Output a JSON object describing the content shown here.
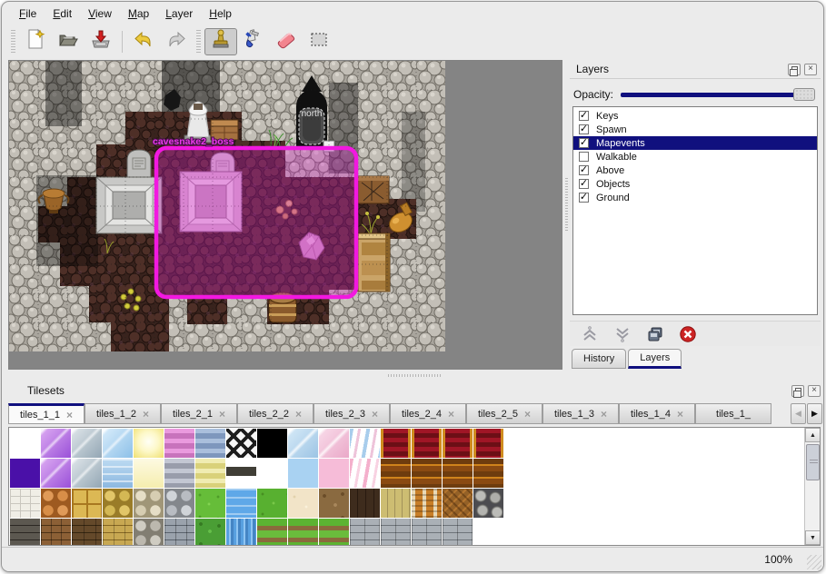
{
  "menu": {
    "items": [
      {
        "label": "File"
      },
      {
        "label": "Edit"
      },
      {
        "label": "View"
      },
      {
        "label": "Map"
      },
      {
        "label": "Layer"
      },
      {
        "label": "Help"
      }
    ]
  },
  "toolbar": {
    "buttons": [
      "new-file",
      "open-file",
      "save-file",
      "undo",
      "redo",
      "stamp-tool",
      "fill-tool",
      "eraser-tool",
      "rect-select-tool"
    ],
    "active_tool": "stamp-tool"
  },
  "map_view": {
    "door_label": "north",
    "selection_label": "cavesnake2_boss"
  },
  "layers_panel": {
    "title": "Layers",
    "opacity_label": "Opacity:",
    "layers": [
      {
        "name": "Keys",
        "checked": true,
        "selected": false
      },
      {
        "name": "Spawn",
        "checked": true,
        "selected": false
      },
      {
        "name": "Mapevents",
        "checked": true,
        "selected": true
      },
      {
        "name": "Walkable",
        "checked": false,
        "selected": false
      },
      {
        "name": "Above",
        "checked": true,
        "selected": false
      },
      {
        "name": "Objects",
        "checked": true,
        "selected": false
      },
      {
        "name": "Ground",
        "checked": true,
        "selected": false
      }
    ],
    "buttons": [
      "raise-layer",
      "lower-layer",
      "duplicate-layer",
      "delete-layer"
    ],
    "tabs": [
      {
        "label": "History",
        "active": false
      },
      {
        "label": "Layers",
        "active": true
      }
    ]
  },
  "tilesets_panel": {
    "title": "Tilesets",
    "tabs": [
      {
        "label": "tiles_1_1",
        "active": true,
        "truncated": false
      },
      {
        "label": "tiles_1_2",
        "active": false,
        "truncated": false
      },
      {
        "label": "tiles_2_1",
        "active": false,
        "truncated": false
      },
      {
        "label": "tiles_2_2",
        "active": false,
        "truncated": false
      },
      {
        "label": "tiles_2_3",
        "active": false,
        "truncated": false
      },
      {
        "label": "tiles_2_4",
        "active": false,
        "truncated": false
      },
      {
        "label": "tiles_2_5",
        "active": false,
        "truncated": false
      },
      {
        "label": "tiles_1_3",
        "active": false,
        "truncated": false
      },
      {
        "label": "tiles_1_4",
        "active": false,
        "truncated": false
      },
      {
        "label": "tiles_1_",
        "active": false,
        "truncated": true
      }
    ],
    "close_glyph": "×",
    "scroll_left_glyph": "◀",
    "scroll_right_glyph": "▶",
    "palette_rows": [
      [
        "empty",
        "crysP",
        "crysG",
        "crysB",
        "glow",
        "strP",
        "strB",
        "lattice",
        "black",
        "glassB",
        "glassP",
        "ribB",
        "carR",
        "carR",
        "carR",
        "carR"
      ],
      [
        "purple",
        "crysP",
        "crysG",
        "waterA",
        "paleY",
        "strG",
        "strY",
        "sign",
        "empty",
        "blue",
        "pink",
        "ribP",
        "carO",
        "carO",
        "carO",
        "carO"
      ],
      [
        "pathW",
        "cobO",
        "tileY",
        "cobY",
        "cobBe",
        "cobG",
        "grass",
        "water",
        "grass2",
        "sand",
        "dirt",
        "woodD",
        "planks",
        "basket",
        "herring",
        "logs"
      ],
      [
        "wallD",
        "brickB",
        "wallB2",
        "wallY",
        "wallCG",
        "wallBG",
        "hedge",
        "wfall",
        "grassPath",
        "grassPath",
        "grassPath",
        "brickG2",
        "brickG2",
        "brickG2",
        "brickG2",
        "empty"
      ]
    ]
  },
  "status_bar": {
    "zoom": "100%"
  },
  "colors": {
    "selection_accent": "#f218e0",
    "highlight": "#10107e",
    "canvas_gray": "#848484"
  }
}
